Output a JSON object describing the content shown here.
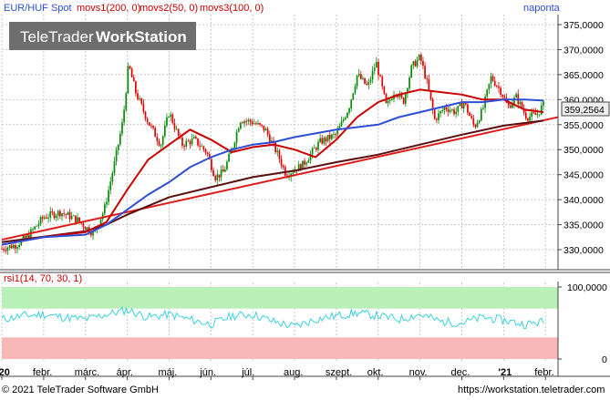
{
  "legend": {
    "symbol": "EUR/HUF Spot",
    "ma1": "movs1(200, 0)",
    "ma2": "movs2(50, 0)",
    "ma3": "movs3(100, 0)",
    "period": "naponta"
  },
  "watermark": {
    "brand": "TeleTrader",
    "product": "WorkStation"
  },
  "last_price": "359,2564",
  "rsi_label": "rsi1(14, 70, 30, 1)",
  "footer": {
    "copyright": "© 2021  TeleTrader Software GmbH",
    "url": "https://workstation.teletrader.com"
  },
  "colors": {
    "up": "#0a8a0a",
    "down": "#e00000",
    "ma_short": "#cc0000",
    "ma_mid": "#2d4fd6",
    "ma_long": "#5a0f0f",
    "trendline": "#dd1a1a",
    "rsi_line": "#3dd0e0",
    "overbought_band": "#b8f0b8",
    "oversold_band": "#f8b8b8",
    "grid": "#c8c8c8",
    "last_price_box": "#eeeeee"
  },
  "chart_data": {
    "type": "candlestick",
    "title": "EUR/HUF Spot",
    "period": "naponta",
    "y_axis": {
      "range": [
        326,
        377
      ],
      "ticks": [
        "375,0000",
        "370,0000",
        "365,0000",
        "360,0000",
        "355,0000",
        "350,0000",
        "345,0000",
        "340,0000",
        "335,0000",
        "330,0000"
      ],
      "tick_values": [
        375,
        370,
        365,
        360,
        355,
        350,
        345,
        340,
        335,
        330
      ]
    },
    "x_axis": {
      "range": [
        0,
        13.3
      ],
      "tick_labels": [
        "'20",
        "febr.",
        "márc.",
        "ápr.",
        "máj.",
        "jún.",
        "júl.",
        "aug.",
        "szept.",
        "okt.",
        "nov.",
        "dec.",
        "'21",
        "febr."
      ],
      "tick_values": [
        0,
        1,
        2,
        3,
        4,
        5,
        6,
        7,
        8,
        9,
        10,
        11,
        12,
        13
      ]
    },
    "price_anchors": [
      [
        0.0,
        330.2
      ],
      [
        0.35,
        331.0
      ],
      [
        0.6,
        332.5
      ],
      [
        1.0,
        336.5
      ],
      [
        1.4,
        337.5
      ],
      [
        1.8,
        336.0
      ],
      [
        2.2,
        333.2
      ],
      [
        2.45,
        338.0
      ],
      [
        2.7,
        347.5
      ],
      [
        2.9,
        356.0
      ],
      [
        3.03,
        367.0
      ],
      [
        3.2,
        361.5
      ],
      [
        3.5,
        355.5
      ],
      [
        3.8,
        351.0
      ],
      [
        4.0,
        357.5
      ],
      [
        4.3,
        351.0
      ],
      [
        4.6,
        352.0
      ],
      [
        4.9,
        349.5
      ],
      [
        5.1,
        344.5
      ],
      [
        5.3,
        345.5
      ],
      [
        5.5,
        350.0
      ],
      [
        5.7,
        356.0
      ],
      [
        6.0,
        355.5
      ],
      [
        6.3,
        354.0
      ],
      [
        6.6,
        349.0
      ],
      [
        6.8,
        345.0
      ],
      [
        7.2,
        347.0
      ],
      [
        7.6,
        351.5
      ],
      [
        8.0,
        353.0
      ],
      [
        8.3,
        358.5
      ],
      [
        8.5,
        365.0
      ],
      [
        8.75,
        362.5
      ],
      [
        8.95,
        367.5
      ],
      [
        9.2,
        358.5
      ],
      [
        9.4,
        362.0
      ],
      [
        9.6,
        359.5
      ],
      [
        9.8,
        366.5
      ],
      [
        10.0,
        368.5
      ],
      [
        10.15,
        364.0
      ],
      [
        10.35,
        356.0
      ],
      [
        10.6,
        358.5
      ],
      [
        10.85,
        357.5
      ],
      [
        11.05,
        359.5
      ],
      [
        11.3,
        354.5
      ],
      [
        11.5,
        358.0
      ],
      [
        11.7,
        364.5
      ],
      [
        11.95,
        361.5
      ],
      [
        12.1,
        358.5
      ],
      [
        12.3,
        360.5
      ],
      [
        12.55,
        356.5
      ],
      [
        12.8,
        357.0
      ],
      [
        12.95,
        359.0
      ]
    ],
    "moving_averages": [
      {
        "name": "movs1(200, 0)",
        "points": [
          [
            0,
            331.5
          ],
          [
            1,
            332.6
          ],
          [
            2,
            333.7
          ],
          [
            2.5,
            335.0
          ],
          [
            3,
            337.0
          ],
          [
            4,
            340.5
          ],
          [
            5,
            342.5
          ],
          [
            6,
            344.5
          ],
          [
            7,
            345.8
          ],
          [
            8,
            347.5
          ],
          [
            9,
            349.0
          ],
          [
            10,
            351.0
          ],
          [
            11,
            353.0
          ],
          [
            12,
            354.8
          ],
          [
            12.95,
            355.8
          ]
        ]
      },
      {
        "name": "movs2(50, 0)",
        "points": [
          [
            0,
            331.0
          ],
          [
            1,
            332.5
          ],
          [
            2,
            333.5
          ],
          [
            2.5,
            335.5
          ],
          [
            3,
            342.0
          ],
          [
            3.5,
            348.0
          ],
          [
            4,
            351.0
          ],
          [
            4.5,
            354.0
          ],
          [
            5,
            352.0
          ],
          [
            5.5,
            349.5
          ],
          [
            6,
            350.5
          ],
          [
            6.5,
            351.0
          ],
          [
            7,
            350.0
          ],
          [
            7.5,
            348.5
          ],
          [
            8,
            352.0
          ],
          [
            8.5,
            356.5
          ],
          [
            9,
            359.5
          ],
          [
            9.5,
            361.0
          ],
          [
            10,
            362.0
          ],
          [
            10.5,
            361.5
          ],
          [
            11,
            361.0
          ],
          [
            11.5,
            360.0
          ],
          [
            12,
            360.0
          ],
          [
            12.5,
            358.0
          ],
          [
            12.95,
            357.5
          ]
        ]
      },
      {
        "name": "movs3(100, 0)",
        "points": [
          [
            0,
            331.0
          ],
          [
            1,
            332.5
          ],
          [
            2,
            333.0
          ],
          [
            2.5,
            335.0
          ],
          [
            3,
            338.0
          ],
          [
            3.5,
            341.0
          ],
          [
            4,
            343.5
          ],
          [
            4.5,
            346.5
          ],
          [
            5,
            348.5
          ],
          [
            5.5,
            350.0
          ],
          [
            6,
            351.0
          ],
          [
            6.5,
            351.5
          ],
          [
            7,
            352.5
          ],
          [
            8,
            354.0
          ],
          [
            9,
            355.0
          ],
          [
            9.5,
            356.5
          ],
          [
            10,
            357.5
          ],
          [
            10.5,
            358.5
          ],
          [
            11,
            359.5
          ],
          [
            11.5,
            359.5
          ],
          [
            12,
            360.0
          ],
          [
            12.5,
            360.0
          ],
          [
            12.95,
            359.8
          ]
        ]
      }
    ],
    "trendline": {
      "points": [
        [
          0,
          332.0
        ],
        [
          13.3,
          356.5
        ]
      ]
    },
    "last_price": 359.2564,
    "rsi": {
      "label": "rsi1(14, 70, 30, 1)",
      "range": [
        0,
        100
      ],
      "overbought": 70,
      "oversold": 30,
      "ticks": [
        "100,0000",
        "0"
      ],
      "tick_values": [
        100,
        0
      ],
      "values": [
        [
          0,
          55
        ],
        [
          0.5,
          60
        ],
        [
          1,
          62
        ],
        [
          1.5,
          58
        ],
        [
          2,
          55
        ],
        [
          2.5,
          62
        ],
        [
          3,
          68
        ],
        [
          3.5,
          58
        ],
        [
          4,
          62
        ],
        [
          4.5,
          55
        ],
        [
          5,
          48
        ],
        [
          5.5,
          60
        ],
        [
          6,
          62
        ],
        [
          6.5,
          52
        ],
        [
          7,
          45
        ],
        [
          7.5,
          55
        ],
        [
          8,
          60
        ],
        [
          8.5,
          64
        ],
        [
          9,
          60
        ],
        [
          9.5,
          55
        ],
        [
          10,
          62
        ],
        [
          10.5,
          52
        ],
        [
          11,
          50
        ],
        [
          11.5,
          58
        ],
        [
          12,
          54
        ],
        [
          12.5,
          48
        ],
        [
          12.95,
          52
        ]
      ]
    }
  }
}
